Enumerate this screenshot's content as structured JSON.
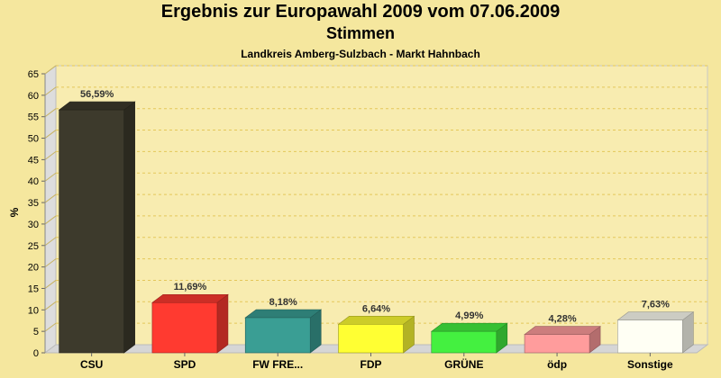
{
  "page": {
    "title": "Ergebnis zur Europawahl 2009 vom 07.06.2009",
    "subtitle": "Stimmen",
    "subsubtitle": "Landkreis Amberg-Sulzbach - Markt Hahnbach"
  },
  "chart_data": {
    "type": "bar",
    "categories": [
      "CSU",
      "SPD",
      "FW FRE...",
      "FDP",
      "GRÜNE",
      "ödp",
      "Sonstige"
    ],
    "values": [
      56.59,
      11.69,
      8.18,
      6.64,
      4.99,
      4.28,
      7.63
    ],
    "value_labels": [
      "56,59%",
      "11,69%",
      "8,18%",
      "6,64%",
      "4,99%",
      "4,28%",
      "7,63%"
    ],
    "colors": [
      "#3d3a2c",
      "#ff3a30",
      "#3a9e94",
      "#ffff33",
      "#44f040",
      "#ff9c9c",
      "#fffff4"
    ],
    "ylabel": "%",
    "ylim": [
      0,
      65
    ],
    "yticks": [
      0,
      5,
      10,
      15,
      20,
      25,
      30,
      35,
      40,
      45,
      50,
      55,
      60,
      65
    ],
    "grid": true,
    "legend": "none"
  }
}
